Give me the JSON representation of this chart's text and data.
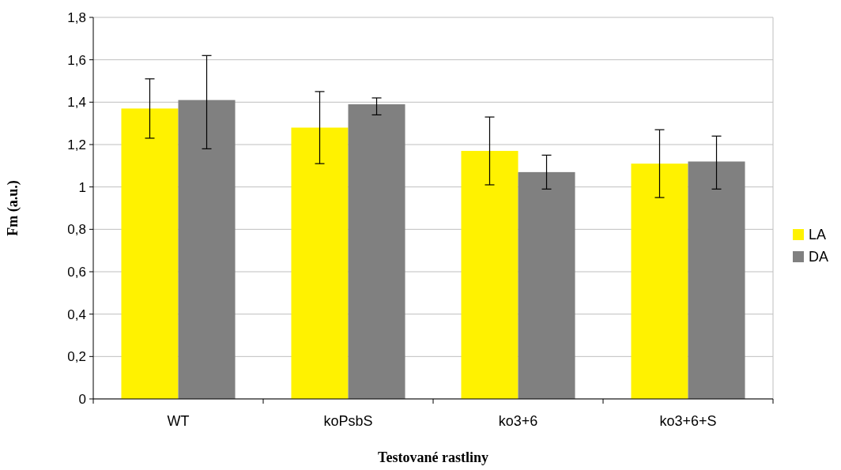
{
  "chart_data": {
    "type": "bar",
    "xlabel": "Testované rastliny",
    "ylabel": "Fm (a.u.)",
    "categories": [
      "WT",
      "koPsbS",
      "ko3+6",
      "ko3+6+S"
    ],
    "series": [
      {
        "name": "LA",
        "color": "#fff200",
        "values": [
          1.37,
          1.28,
          1.17,
          1.11
        ],
        "errors": [
          [
            1.23,
            1.51
          ],
          [
            1.11,
            1.45
          ],
          [
            1.01,
            1.33
          ],
          [
            0.95,
            1.27
          ]
        ]
      },
      {
        "name": "DA",
        "color": "#808080",
        "values": [
          1.41,
          1.39,
          1.07,
          1.12
        ],
        "errors": [
          [
            1.18,
            1.62
          ],
          [
            1.34,
            1.42
          ],
          [
            0.99,
            1.15
          ],
          [
            0.99,
            1.24
          ]
        ]
      }
    ],
    "ylim": [
      0,
      1.8
    ],
    "yticks": [
      {
        "value": 0,
        "label": "0"
      },
      {
        "value": 0.2,
        "label": "0,2"
      },
      {
        "value": 0.4,
        "label": "0,4"
      },
      {
        "value": 0.6,
        "label": "0,6"
      },
      {
        "value": 0.8,
        "label": "0,8"
      },
      {
        "value": 1,
        "label": "1"
      },
      {
        "value": 1.2,
        "label": "1,2"
      },
      {
        "value": 1.4,
        "label": "1,4"
      },
      {
        "value": 1.6,
        "label": "1,6"
      },
      {
        "value": 1.8,
        "label": "1,8"
      }
    ],
    "grid": "y",
    "legend": "right"
  }
}
